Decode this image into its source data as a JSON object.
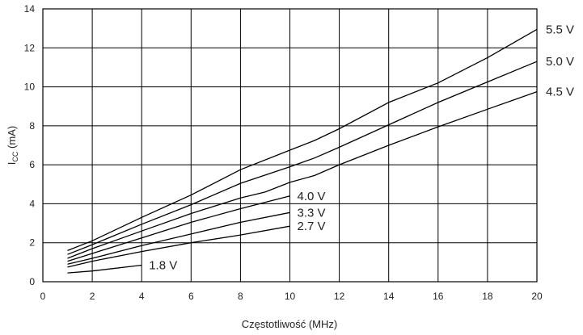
{
  "chart_data": {
    "type": "line",
    "xlabel": "Częstotliwość (MHz)",
    "ylabel": "I",
    "ylabel_sub": "CC",
    "ylabel_unit": " (mA)",
    "xlim": [
      0,
      20
    ],
    "ylim": [
      0,
      14
    ],
    "xticks": [
      0,
      2,
      4,
      6,
      8,
      10,
      12,
      14,
      16,
      18,
      20
    ],
    "yticks": [
      0,
      2,
      4,
      6,
      8,
      10,
      12,
      14
    ],
    "grid": true,
    "series": [
      {
        "name": "5.5 V",
        "points": [
          [
            1,
            1.6
          ],
          [
            2,
            2.1
          ],
          [
            4,
            3.3
          ],
          [
            6,
            4.45
          ],
          [
            8,
            5.75
          ],
          [
            10,
            6.75
          ],
          [
            11,
            7.25
          ],
          [
            12,
            7.85
          ],
          [
            14,
            9.2
          ],
          [
            16,
            10.2
          ],
          [
            18,
            11.5
          ],
          [
            20,
            12.95
          ]
        ]
      },
      {
        "name": "5.0 V",
        "points": [
          [
            1,
            1.4
          ],
          [
            2,
            1.9
          ],
          [
            4,
            2.95
          ],
          [
            6,
            3.95
          ],
          [
            8,
            5.05
          ],
          [
            10,
            5.9
          ],
          [
            11,
            6.35
          ],
          [
            12,
            6.9
          ],
          [
            14,
            8.05
          ],
          [
            16,
            9.2
          ],
          [
            18,
            10.25
          ],
          [
            20,
            11.3
          ]
        ]
      },
      {
        "name": "4.5 V",
        "points": [
          [
            1,
            1.2
          ],
          [
            2,
            1.7
          ],
          [
            4,
            2.6
          ],
          [
            6,
            3.5
          ],
          [
            8,
            4.3
          ],
          [
            9,
            4.6
          ],
          [
            10,
            5.1
          ],
          [
            11,
            5.45
          ],
          [
            12,
            6.0
          ],
          [
            14,
            7.0
          ],
          [
            16,
            7.95
          ],
          [
            18,
            8.85
          ],
          [
            20,
            9.75
          ]
        ]
      },
      {
        "name": "4.0 V",
        "points": [
          [
            1,
            1.05
          ],
          [
            2,
            1.45
          ],
          [
            4,
            2.25
          ],
          [
            6,
            3.05
          ],
          [
            8,
            3.75
          ],
          [
            10,
            4.4
          ]
        ]
      },
      {
        "name": "3.3 V",
        "points": [
          [
            1,
            0.9
          ],
          [
            2,
            1.2
          ],
          [
            4,
            1.85
          ],
          [
            6,
            2.45
          ],
          [
            8,
            3.05
          ],
          [
            10,
            3.55
          ]
        ]
      },
      {
        "name": "2.7 V",
        "points": [
          [
            1,
            0.75
          ],
          [
            2,
            1.05
          ],
          [
            4,
            1.55
          ],
          [
            6,
            2.0
          ],
          [
            8,
            2.4
          ],
          [
            10,
            2.85
          ]
        ]
      },
      {
        "name": "1.8 V",
        "points": [
          [
            1,
            0.45
          ],
          [
            2,
            0.55
          ],
          [
            4,
            0.85
          ]
        ]
      }
    ]
  }
}
